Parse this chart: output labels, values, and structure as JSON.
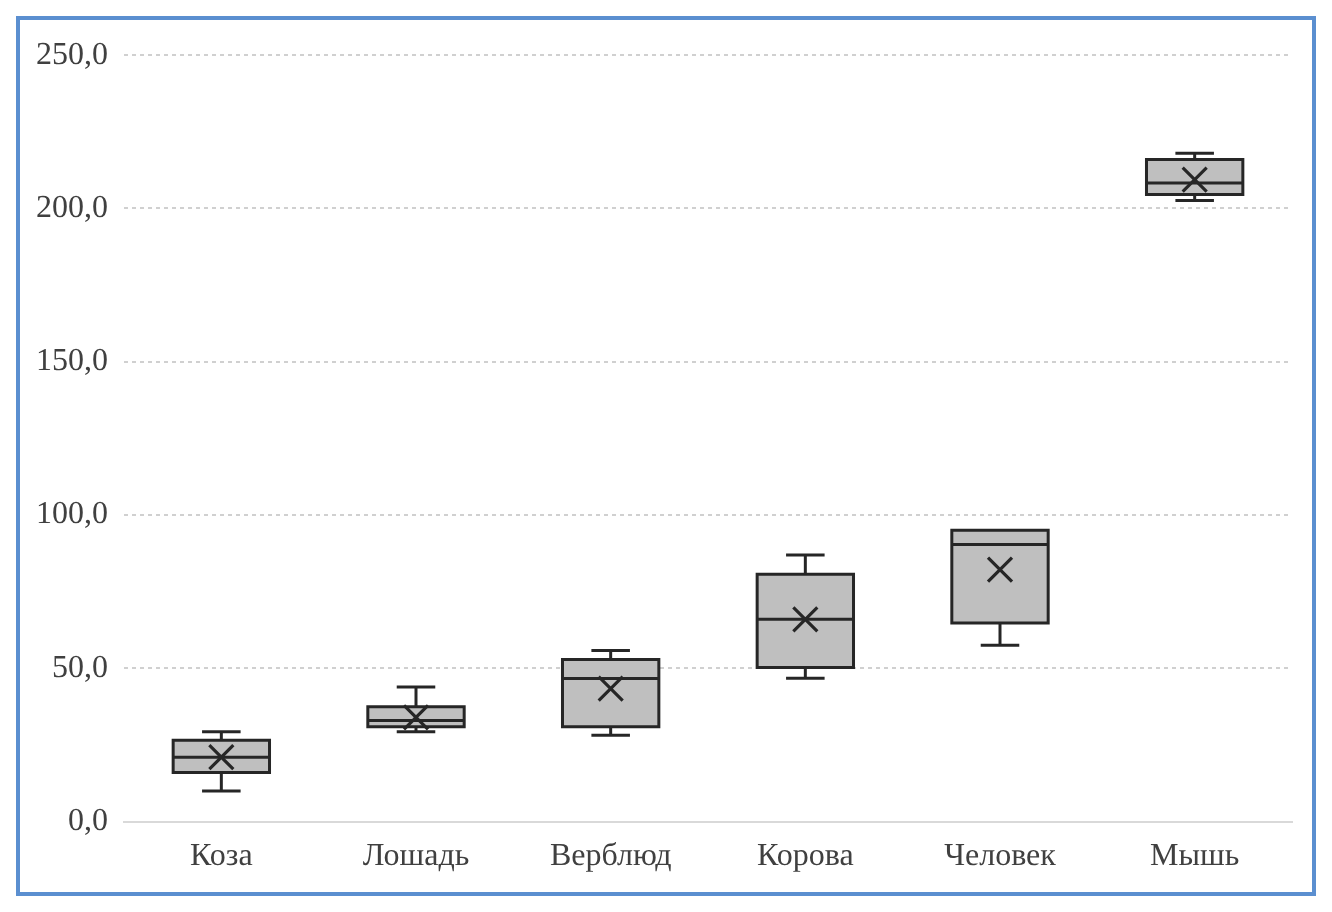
{
  "chart_data": {
    "type": "box",
    "categories": [
      "Коза",
      "Лошадь",
      "Верблюд",
      "Корова",
      "Человек",
      "Мышь"
    ],
    "color": "#bfbfbf",
    "boxes": [
      {
        "low": 10,
        "q1": 16,
        "median": 21,
        "q3": 26.5,
        "high": 29.3,
        "mean": 21
      },
      {
        "low": 29.3,
        "q1": 30.9,
        "median": 33,
        "q3": 37.5,
        "high": 43.9,
        "mean": 34
      },
      {
        "low": 28.2,
        "q1": 30.9,
        "median": 46.7,
        "q3": 52.9,
        "high": 55.8,
        "mean": 43.4
      },
      {
        "low": 46.8,
        "q1": 50.3,
        "median": 66,
        "q3": 80.7,
        "high": 87,
        "mean": 66
      },
      {
        "low": 57.5,
        "q1": 64.8,
        "median": 90.4,
        "q3": 95,
        "high": 95,
        "mean": 82.2
      },
      {
        "low": 202.6,
        "q1": 204.6,
        "median": 208.3,
        "q3": 216,
        "high": 218,
        "mean": 209.4
      }
    ],
    "ylim": [
      0,
      250
    ],
    "yticks": [
      {
        "value": 0,
        "label": "0,0"
      },
      {
        "value": 50,
        "label": "50,0"
      },
      {
        "value": 100,
        "label": "100,0"
      },
      {
        "value": 150,
        "label": "150,0"
      },
      {
        "value": 200,
        "label": "200,0"
      },
      {
        "value": 250,
        "label": "250,0"
      }
    ],
    "grid": "y",
    "legend": false,
    "marker": "cross"
  }
}
